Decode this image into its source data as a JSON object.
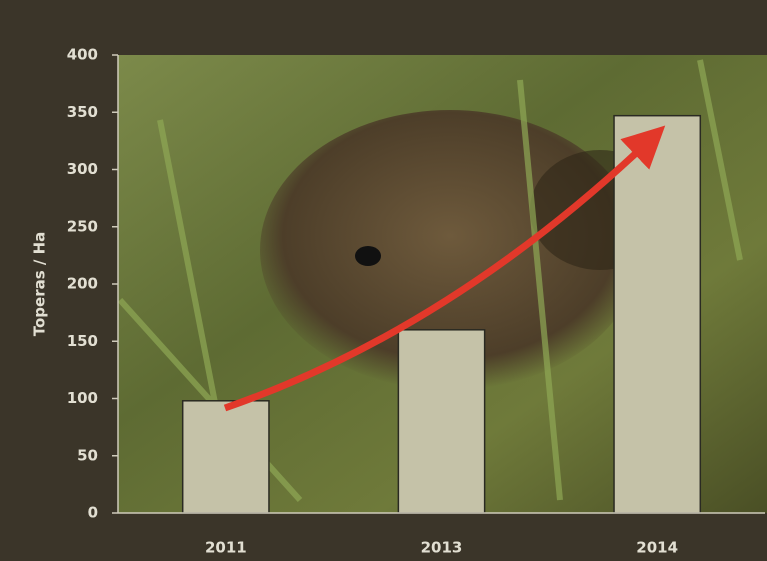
{
  "chart_data": {
    "type": "bar",
    "y_label": "Toperas / Ha",
    "categories": [
      "2011",
      "2013",
      "2014"
    ],
    "values": [
      98,
      160,
      347
    ],
    "color": "#c5c2a8",
    "ylim": [
      0,
      400
    ],
    "yticks": [
      0,
      50,
      100,
      150,
      200,
      250,
      300,
      350,
      400
    ]
  }
}
